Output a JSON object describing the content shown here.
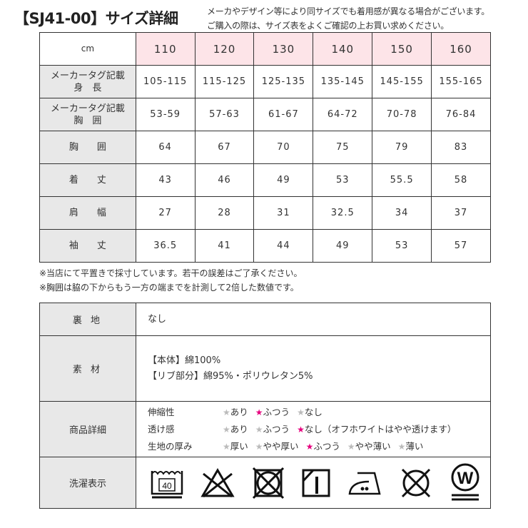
{
  "title": "【SJ41-00】サイズ詳細",
  "subtitle": [
    "メーカやデザイン等により同サイズでも着用感が異なる場合がございます。",
    "ご購入の際は、サイズ表をよくご確認の上お買い求めください。"
  ],
  "size_table": {
    "unit": "cm",
    "sizes": [
      "110",
      "120",
      "130",
      "140",
      "150",
      "160"
    ],
    "rows": [
      {
        "label": [
          "メーカータグ記載",
          "身　長"
        ],
        "values": [
          "105-115",
          "115-125",
          "125-135",
          "135-145",
          "145-155",
          "155-165"
        ]
      },
      {
        "label": [
          "メーカータグ記載",
          "胸　囲"
        ],
        "values": [
          "53-59",
          "57-63",
          "61-67",
          "64-72",
          "70-78",
          "76-84"
        ]
      },
      {
        "label": [
          "胸　　囲"
        ],
        "values": [
          "64",
          "67",
          "70",
          "75",
          "79",
          "83"
        ]
      },
      {
        "label": [
          "着　　丈"
        ],
        "values": [
          "43",
          "46",
          "49",
          "53",
          "55.5",
          "58"
        ]
      },
      {
        "label": [
          "肩　　幅"
        ],
        "values": [
          "27",
          "28",
          "31",
          "32.5",
          "34",
          "37"
        ]
      },
      {
        "label": [
          "袖　　丈"
        ],
        "values": [
          "36.5",
          "41",
          "44",
          "49",
          "53",
          "57"
        ]
      }
    ]
  },
  "notes": [
    "※当店にて平置きで採寸しています。若干の誤差はご了承ください。",
    "※胸囲は脇の下からもう一方の端までを計測して2倍した数値です。"
  ],
  "info": {
    "lining": {
      "label": "裏 地",
      "value": "なし"
    },
    "material": {
      "label": "素 材",
      "lines": [
        "【本体】綿100%",
        "【リブ部分】綿95%・ポリウレタン5%"
      ]
    },
    "details": {
      "label": "商品詳細",
      "rows": [
        {
          "name": "伸縮性",
          "options": [
            "あり",
            "ふつう",
            "なし"
          ],
          "selected": 1
        },
        {
          "name": "透け感",
          "options": [
            "あり",
            "ふつう",
            "なし（オフホワイトはやや透けます）"
          ],
          "selected": 2
        },
        {
          "name": "生地の厚み",
          "options": [
            "厚い",
            "やや厚い",
            "ふつう",
            "やや薄い",
            "薄い"
          ],
          "selected": 2
        }
      ]
    },
    "care": {
      "label": "洗濯表示",
      "wash_temp": "40",
      "icons": [
        "wash-40-icon",
        "no-bleach-icon",
        "no-tumble-dry-icon",
        "line-dry-shade-icon",
        "iron-low-icon",
        "no-dry-clean-icon",
        "wet-clean-icon"
      ],
      "wet_letter": "W"
    }
  },
  "colors": {
    "header_pink": "#fde4e8",
    "label_gray": "#e8e8e8",
    "star_selected": "#e6007e",
    "star_unselected": "#bbbbbb"
  }
}
